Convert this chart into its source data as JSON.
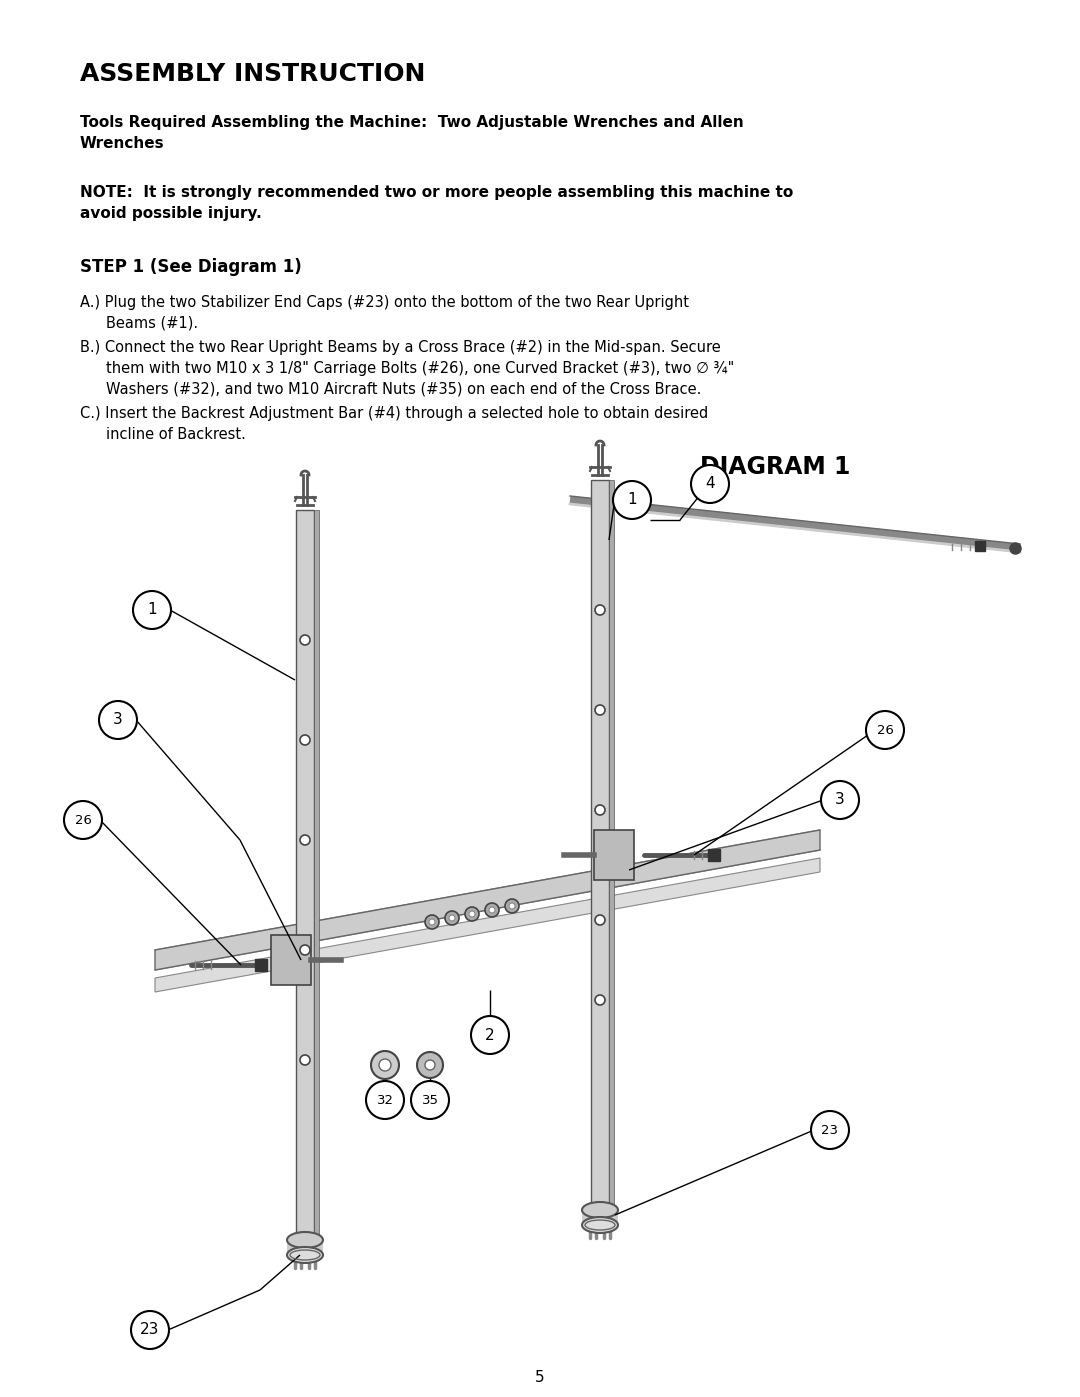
{
  "title": "ASSEMBLY INSTRUCTION",
  "tools_text": "Tools Required Assembling the Machine:  Two Adjustable Wrenches and Allen\nWrenches",
  "note_text": "NOTE:  It is strongly recommended two or more people assembling this machine to\navoid possible injury.",
  "step_text": "STEP 1 (See Diagram 1)",
  "step_a": "A.) Plug the two Stabilizer End Caps (#23) onto the bottom of the two Rear Upright\n        Beams (#1).",
  "step_b": "B.) Connect the two Rear Upright Beams by a Cross Brace (#2) in the Mid-span. Secure\n        them with two M10 x 3 1/8\" Carriage Bolts (#26), one Curved Bracket (#3), two ∅ ¾\"\n        Washers (#32), and two M10 Aircraft Nuts (#35) on each end of the Cross Brace.",
  "step_c": "C.) Insert the Backrest Adjustment Bar (#4) through a selected hole to obtain desired\n        incline of Backrest.",
  "diagram_label": "DIAGRAM 1",
  "page_number": "5",
  "bg_color": "#ffffff",
  "text_color": "#000000"
}
